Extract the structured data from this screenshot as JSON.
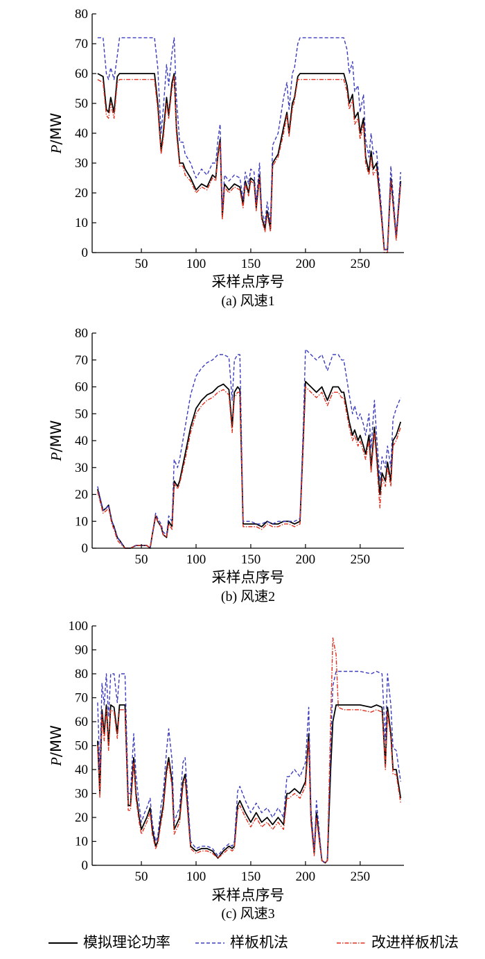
{
  "legend": {
    "items": [
      {
        "label": "模拟理论功率",
        "color": "#000000",
        "dash": "solid"
      },
      {
        "label": "样板机法",
        "color": "#3b3bbf",
        "dash": "dashed"
      },
      {
        "label": "改进样板机法",
        "color": "#e0301e",
        "dash": "dash-dot"
      }
    ]
  },
  "chart_data": [
    {
      "type": "line",
      "caption": "(a)  风速1",
      "xlabel": "采样点序号",
      "ylabel": "P/MW",
      "xlim": [
        5,
        290
      ],
      "ylim": [
        0,
        80
      ],
      "xticks": [
        50,
        100,
        150,
        200,
        250
      ],
      "yticks": [
        0,
        10,
        20,
        30,
        40,
        50,
        60,
        70,
        80
      ],
      "x": [
        10,
        15,
        18,
        20,
        22,
        25,
        28,
        30,
        40,
        50,
        55,
        62,
        65,
        68,
        70,
        73,
        75,
        78,
        80,
        82,
        85,
        88,
        90,
        95,
        100,
        105,
        110,
        115,
        118,
        120,
        122,
        124,
        126,
        128,
        130,
        135,
        140,
        143,
        145,
        148,
        150,
        153,
        155,
        158,
        160,
        163,
        165,
        168,
        170,
        175,
        180,
        183,
        185,
        188,
        190,
        193,
        195,
        200,
        210,
        220,
        230,
        235,
        238,
        240,
        243,
        245,
        248,
        250,
        253,
        255,
        258,
        260,
        262,
        265,
        268,
        270,
        272,
        275,
        278,
        280,
        283,
        287
      ],
      "series": [
        {
          "name": "模拟理论功率",
          "values": [
            60,
            59,
            48,
            47,
            52,
            47,
            59,
            60,
            60,
            60,
            60,
            60,
            50,
            34,
            40,
            52,
            46,
            57,
            60,
            42,
            30,
            30,
            28,
            25,
            21,
            23,
            22,
            26,
            25,
            33,
            38,
            12,
            23,
            22,
            21,
            23,
            22,
            16,
            24,
            20,
            25,
            24,
            15,
            26,
            12,
            8,
            14,
            8,
            30,
            33,
            42,
            47,
            40,
            50,
            52,
            59,
            60,
            60,
            60,
            60,
            60,
            60,
            56,
            50,
            53,
            45,
            47,
            40,
            45,
            32,
            27,
            34,
            28,
            30,
            18,
            10,
            1,
            1,
            25,
            17,
            5,
            24
          ],
          "mark_note": "line"
        },
        {
          "name": "样板机法",
          "values": [
            72,
            72,
            60,
            58,
            62,
            58,
            66,
            72,
            72,
            72,
            72,
            72,
            62,
            40,
            48,
            63,
            56,
            67,
            72,
            52,
            37,
            37,
            33,
            30,
            25,
            28,
            26,
            30,
            30,
            38,
            43,
            14,
            26,
            25,
            24,
            26,
            25,
            18,
            27,
            23,
            28,
            27,
            17,
            30,
            14,
            10,
            17,
            10,
            36,
            40,
            52,
            57,
            48,
            60,
            62,
            70,
            72,
            72,
            72,
            72,
            72,
            72,
            68,
            60,
            64,
            54,
            56,
            47,
            53,
            38,
            32,
            40,
            33,
            34,
            21,
            12,
            1,
            1,
            29,
            20,
            6,
            27
          ],
          "mark_note": "line"
        },
        {
          "name": "改进样板机法",
          "values": [
            58,
            57,
            46,
            45,
            50,
            45,
            57,
            58,
            58,
            58,
            58,
            58,
            48,
            33,
            38,
            50,
            45,
            55,
            59,
            40,
            29,
            29,
            26,
            24,
            20,
            22,
            21,
            25,
            24,
            32,
            37,
            11,
            22,
            21,
            20,
            22,
            21,
            15,
            23,
            19,
            24,
            23,
            14,
            25,
            11,
            7,
            13,
            7,
            29,
            32,
            40,
            46,
            39,
            48,
            51,
            58,
            58,
            58,
            58,
            58,
            58,
            58,
            54,
            48,
            51,
            43,
            45,
            38,
            43,
            30,
            26,
            32,
            26,
            28,
            17,
            9,
            0,
            0,
            24,
            16,
            4,
            23
          ],
          "mark_note": "line"
        }
      ]
    },
    {
      "type": "line",
      "caption": "(b)  风速2",
      "xlabel": "采样点序号",
      "ylabel": "P/MW",
      "xlim": [
        5,
        290
      ],
      "ylim": [
        0,
        80
      ],
      "xticks": [
        50,
        100,
        150,
        200,
        250
      ],
      "yticks": [
        0,
        10,
        20,
        30,
        40,
        50,
        60,
        70,
        80
      ],
      "x": [
        10,
        15,
        18,
        20,
        23,
        25,
        28,
        30,
        35,
        40,
        45,
        50,
        55,
        58,
        60,
        63,
        65,
        68,
        70,
        73,
        75,
        78,
        80,
        83,
        85,
        90,
        95,
        100,
        105,
        110,
        115,
        120,
        125,
        130,
        133,
        135,
        138,
        140,
        143,
        145,
        150,
        155,
        160,
        165,
        170,
        175,
        180,
        185,
        190,
        195,
        198,
        200,
        205,
        210,
        215,
        220,
        225,
        230,
        233,
        235,
        240,
        243,
        245,
        248,
        250,
        253,
        255,
        258,
        260,
        263,
        265,
        268,
        270,
        273,
        275,
        278,
        280,
        283,
        287
      ],
      "series": [
        {
          "name": "模拟理论功率",
          "values": [
            22,
            14,
            15,
            16,
            10,
            8,
            4,
            3,
            0,
            0,
            1,
            1,
            1,
            0,
            5,
            12,
            10,
            8,
            5,
            4,
            10,
            8,
            25,
            23,
            25,
            35,
            45,
            52,
            55,
            57,
            58,
            60,
            61,
            59,
            45,
            58,
            60,
            59,
            9,
            9,
            9,
            9,
            8,
            10,
            9,
            9,
            10,
            10,
            9,
            10,
            40,
            62,
            60,
            58,
            60,
            55,
            60,
            60,
            58,
            58,
            47,
            42,
            44,
            40,
            42,
            38,
            35,
            42,
            30,
            45,
            35,
            20,
            28,
            25,
            32,
            25,
            40,
            42,
            47
          ],
          "mark_note": "line"
        },
        {
          "name": "样板机法",
          "values": [
            23,
            14,
            15,
            16,
            10,
            8,
            4,
            3,
            0,
            0,
            1,
            1,
            1,
            0,
            5,
            13,
            11,
            9,
            6,
            5,
            12,
            10,
            33,
            30,
            33,
            45,
            57,
            64,
            67,
            69,
            70,
            72,
            72,
            71,
            55,
            70,
            72,
            72,
            10,
            10,
            10,
            9,
            9,
            10,
            9,
            10,
            10,
            10,
            10,
            11,
            45,
            74,
            72,
            70,
            72,
            66,
            72,
            72,
            70,
            70,
            57,
            50,
            53,
            48,
            50,
            46,
            42,
            50,
            37,
            55,
            42,
            25,
            34,
            30,
            38,
            30,
            48,
            52,
            56
          ],
          "mark_note": "line"
        },
        {
          "name": "改进样板机法",
          "values": [
            21,
            13,
            14,
            15,
            9,
            7,
            3,
            2,
            0,
            0,
            1,
            1,
            1,
            0,
            5,
            12,
            10,
            8,
            5,
            4,
            9,
            7,
            24,
            22,
            24,
            33,
            43,
            50,
            53,
            55,
            56,
            58,
            59,
            57,
            43,
            56,
            58,
            58,
            8,
            8,
            8,
            8,
            7,
            9,
            8,
            8,
            9,
            9,
            8,
            9,
            38,
            60,
            58,
            56,
            58,
            53,
            58,
            58,
            56,
            56,
            45,
            40,
            42,
            38,
            40,
            36,
            33,
            40,
            28,
            43,
            33,
            15,
            26,
            23,
            30,
            23,
            38,
            40,
            45
          ],
          "mark_note": "line"
        }
      ]
    },
    {
      "type": "line",
      "caption": "(c)  风速3",
      "xlabel": "采样点序号",
      "ylabel": "P/MW",
      "xlim": [
        5,
        290
      ],
      "ylim": [
        0,
        100
      ],
      "xticks": [
        50,
        100,
        150,
        200,
        250
      ],
      "yticks": [
        0,
        10,
        20,
        30,
        40,
        50,
        60,
        70,
        80,
        90,
        100
      ],
      "x": [
        10,
        12,
        14,
        16,
        18,
        20,
        22,
        25,
        28,
        30,
        33,
        35,
        38,
        40,
        43,
        45,
        48,
        50,
        53,
        55,
        58,
        60,
        63,
        65,
        68,
        70,
        73,
        75,
        78,
        80,
        83,
        85,
        88,
        90,
        93,
        95,
        100,
        105,
        110,
        115,
        120,
        125,
        130,
        133,
        135,
        138,
        140,
        145,
        150,
        155,
        160,
        165,
        170,
        175,
        180,
        183,
        185,
        190,
        195,
        200,
        203,
        205,
        208,
        210,
        213,
        215,
        218,
        220,
        223,
        225,
        228,
        230,
        235,
        240,
        250,
        260,
        265,
        270,
        273,
        275,
        278,
        280,
        283,
        287
      ],
      "series": [
        {
          "name": "模拟理论功率",
          "values": [
            52,
            30,
            65,
            55,
            67,
            50,
            67,
            66,
            55,
            67,
            67,
            67,
            25,
            25,
            45,
            30,
            20,
            15,
            18,
            20,
            24,
            15,
            8,
            10,
            20,
            25,
            40,
            45,
            35,
            15,
            18,
            20,
            35,
            38,
            20,
            8,
            6,
            7,
            7,
            6,
            3,
            6,
            8,
            7,
            8,
            25,
            27,
            22,
            18,
            22,
            18,
            20,
            17,
            20,
            17,
            30,
            30,
            32,
            30,
            35,
            55,
            20,
            5,
            22,
            10,
            2,
            1,
            2,
            40,
            60,
            67,
            67,
            67,
            67,
            67,
            66,
            67,
            66,
            42,
            66,
            55,
            40,
            40,
            28
          ],
          "mark_note": "line"
        },
        {
          "name": "样板机法",
          "values": [
            68,
            40,
            76,
            67,
            80,
            62,
            80,
            80,
            68,
            80,
            80,
            80,
            30,
            30,
            55,
            38,
            25,
            18,
            22,
            24,
            28,
            18,
            10,
            12,
            25,
            30,
            48,
            57,
            44,
            18,
            22,
            24,
            43,
            45,
            24,
            10,
            7,
            8,
            8,
            7,
            4,
            7,
            9,
            8,
            10,
            31,
            33,
            27,
            22,
            26,
            22,
            24,
            20,
            24,
            20,
            37,
            37,
            40,
            37,
            43,
            66,
            24,
            6,
            27,
            12,
            2,
            1,
            2,
            50,
            75,
            81,
            81,
            81,
            81,
            81,
            80,
            81,
            80,
            52,
            80,
            67,
            49,
            48,
            35
          ],
          "mark_note": "line"
        },
        {
          "name": "改进样板机法",
          "values": [
            50,
            28,
            63,
            52,
            65,
            48,
            65,
            64,
            53,
            65,
            65,
            65,
            23,
            23,
            43,
            28,
            18,
            13,
            16,
            18,
            22,
            13,
            7,
            9,
            18,
            23,
            38,
            43,
            33,
            13,
            16,
            18,
            33,
            36,
            18,
            7,
            5,
            6,
            6,
            5,
            3,
            5,
            7,
            6,
            7,
            23,
            25,
            20,
            16,
            20,
            16,
            18,
            15,
            18,
            15,
            28,
            28,
            30,
            28,
            33,
            52,
            18,
            4,
            20,
            9,
            2,
            1,
            2,
            60,
            95,
            88,
            66,
            65,
            65,
            65,
            64,
            65,
            64,
            40,
            64,
            53,
            38,
            38,
            26
          ],
          "mark_note": "line"
        }
      ]
    }
  ]
}
